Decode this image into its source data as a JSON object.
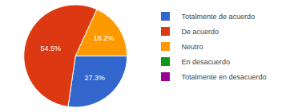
{
  "chart_data": {
    "type": "pie",
    "categories": [
      "Totalmente de acuerdo",
      "De acuerdo",
      "Neutro",
      "En desacuerdo",
      "Totalmente en desacuerdo"
    ],
    "values": [
      27.3,
      54.5,
      18.2,
      0,
      0
    ],
    "value_labels": [
      "27.3%",
      "54.5%",
      "18.2%",
      null,
      null
    ],
    "colors": [
      "#3366cc",
      "#dc3912",
      "#ff9900",
      "#109618",
      "#990099"
    ],
    "data_labels": true,
    "legend": "right"
  }
}
